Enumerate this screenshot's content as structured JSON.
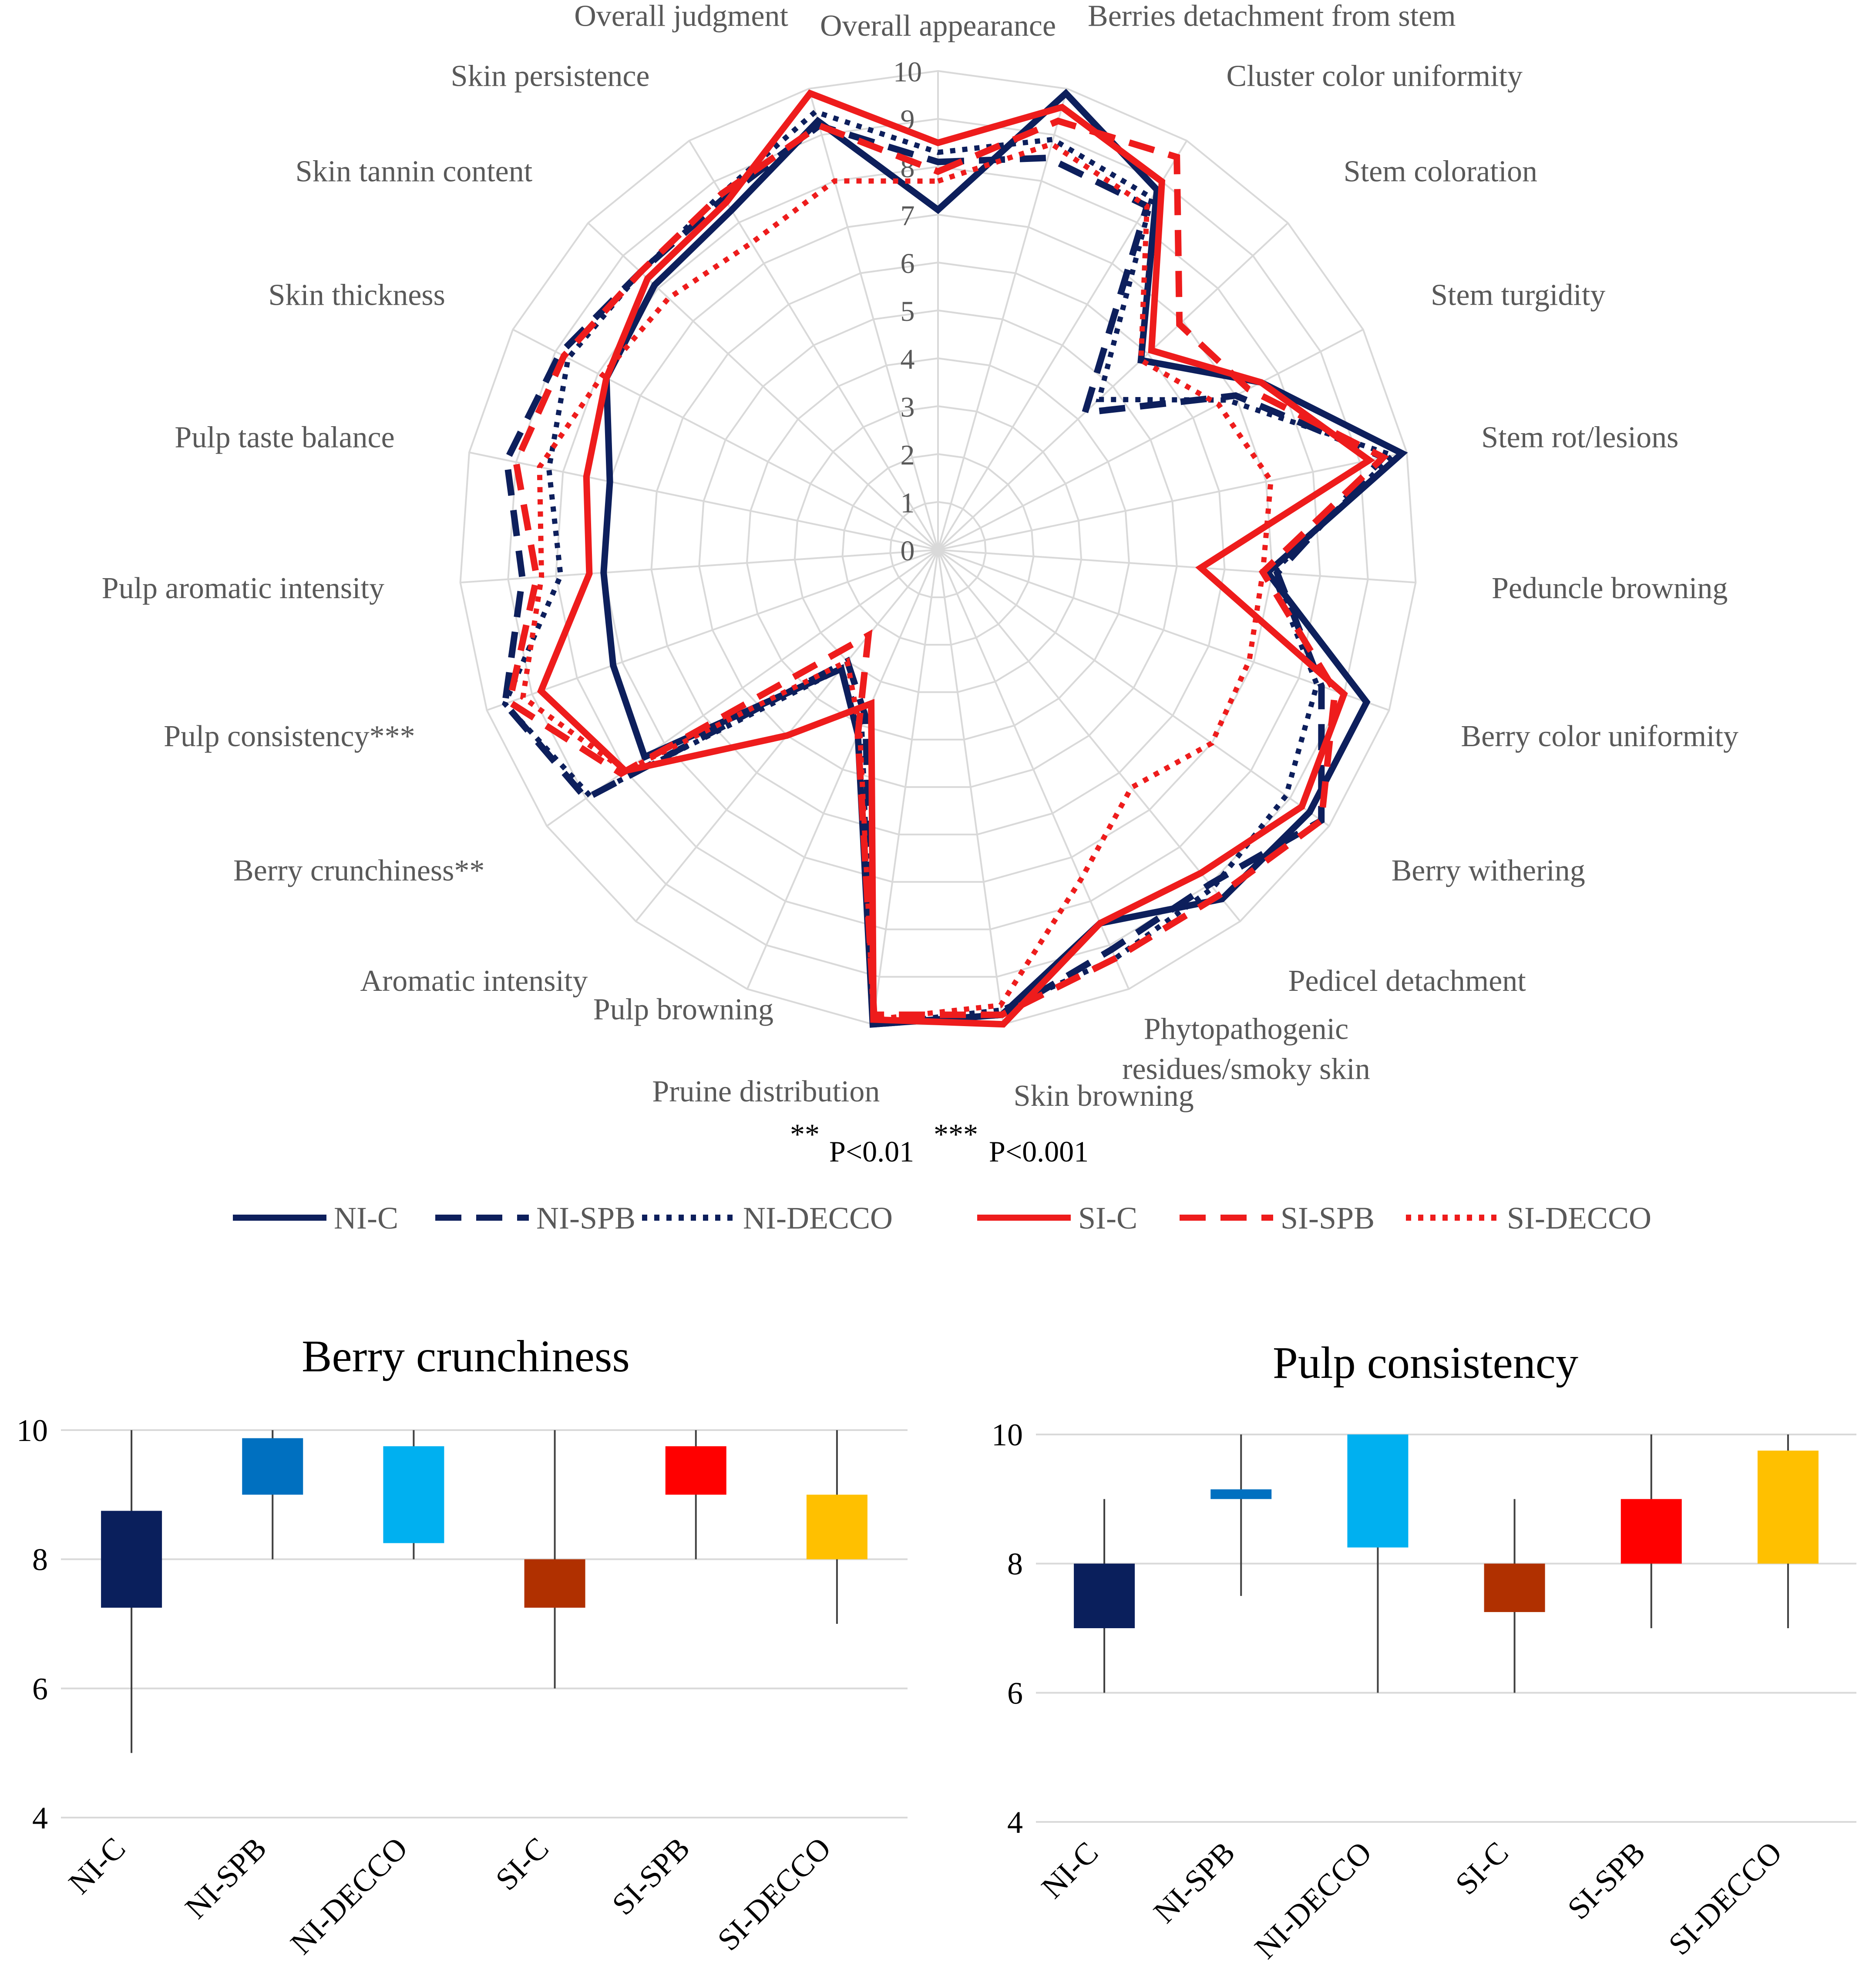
{
  "chart_data": [
    {
      "type": "radar",
      "title": "",
      "axes": [
        "Overall appearance",
        "Berries detachment from stem",
        "Cluster color uniformity",
        "Stem coloration",
        "Stem turgidity",
        "Stem rot/lesions",
        "Peduncle browning",
        "Berry color uniformity",
        "Berry withering",
        "Pedicel detachment",
        "Phytopathogenic residues/smoky skin",
        "Skin browning",
        "Pruine distribution",
        "Pulp browning",
        "Aromatic intensity",
        "Berry crunchiness**",
        "Pulp consistency***",
        "Pulp aromatic intensity",
        "Pulp taste balance",
        "Skin thickness",
        "Skin tannin content",
        "Skin persistence",
        "Overall judgment"
      ],
      "radial_ticks": [
        "0",
        "1",
        "2",
        "3",
        "4",
        "5",
        "6",
        "7",
        "8",
        "9",
        "10"
      ],
      "rlim": [
        0,
        10
      ],
      "series": [
        {
          "name": "NI-C",
          "color": "#0d1f5c",
          "dash": "solid",
          "values": [
            7.1,
            9.9,
            8.8,
            5.8,
            7.6,
            9.9,
            6.9,
            9.5,
            9.5,
            9.4,
            8.5,
            9.8,
            10.0,
            4.2,
            3.2,
            7.5,
            7.2,
            7.0,
            7.0,
            7.8,
            8.1,
            8.3,
            9.3
          ]
        },
        {
          "name": "NI-SPB",
          "color": "#0d1f5c",
          "dash": "dash",
          "values": [
            8.1,
            8.5,
            8.4,
            4.2,
            7.0,
            9.5,
            7.1,
            8.5,
            9.8,
            9.0,
            9.1,
            9.8,
            10.0,
            3.8,
            3.0,
            9.0,
            9.6,
            8.7,
            9.2,
            8.9,
            8.5,
            8.6,
            9.2
          ]
        },
        {
          "name": "NI-DECCO",
          "color": "#0d1f5c",
          "dash": "dot",
          "values": [
            8.3,
            8.9,
            8.6,
            4.6,
            6.8,
            9.7,
            7.0,
            8.4,
            8.9,
            9.1,
            9.3,
            9.7,
            10.0,
            4.0,
            3.2,
            8.9,
            9.6,
            7.9,
            8.3,
            8.7,
            8.5,
            8.7,
            9.5
          ]
        },
        {
          "name": "SI-C",
          "color": "#ee1c1c",
          "dash": "solid",
          "values": [
            8.5,
            9.6,
            9.0,
            6.1,
            7.6,
            9.2,
            5.5,
            9.0,
            9.3,
            8.7,
            8.5,
            10.0,
            9.9,
            3.5,
            5.0,
            8.0,
            8.8,
            7.3,
            7.5,
            7.8,
            8.3,
            8.5,
            9.9
          ]
        },
        {
          "name": "SI-SPB",
          "color": "#ee1c1c",
          "dash": "dash",
          "values": [
            7.9,
            9.3,
            9.6,
            6.9,
            7.3,
            9.5,
            6.8,
            8.8,
            9.8,
            9.3,
            9.3,
            9.8,
            9.8,
            4.2,
            2.3,
            8.1,
            9.5,
            8.4,
            9.0,
            8.8,
            8.5,
            8.7,
            9.2
          ]
        },
        {
          "name": "SI-DECCO",
          "color": "#ee1c1c",
          "dash": "dot",
          "values": [
            7.7,
            8.8,
            8.4,
            5.8,
            6.6,
            7.1,
            6.8,
            6.9,
            7.0,
            6.4,
            7.5,
            9.6,
            9.9,
            4.1,
            3.0,
            8.0,
            9.2,
            8.3,
            8.5,
            7.9,
            7.7,
            7.5,
            8.0
          ]
        }
      ],
      "annotation": {
        "sig_01_stars": "**",
        "sig_01_text": "P<0.01",
        "sig_001_stars": "***",
        "sig_001_text": "P<0.001"
      },
      "legend_position": "bottom"
    },
    {
      "type": "box",
      "title": "Berry crunchiness",
      "categories": [
        "NI-C",
        "NI-SPB",
        "NI-DECCO",
        "SI-C",
        "SI-SPB",
        "SI-DECCO"
      ],
      "colors": [
        "#0a1f5c",
        "#0070c0",
        "#00b0f0",
        "#b03000",
        "#ff0000",
        "#ffc000"
      ],
      "boxes": [
        {
          "min": 5,
          "q1": 7.25,
          "q3": 8.75,
          "max": 10
        },
        {
          "min": 8,
          "q1": 9.0,
          "q3": 9.875,
          "max": 10
        },
        {
          "min": 8,
          "q1": 8.25,
          "q3": 9.75,
          "max": 10
        },
        {
          "min": 6,
          "q1": 7.25,
          "q3": 8.0,
          "max": 10
        },
        {
          "min": 8,
          "q1": 9.0,
          "q3": 9.75,
          "max": 10
        },
        {
          "min": 7,
          "q1": 8.0,
          "q3": 9.0,
          "max": 10
        }
      ],
      "yticks": [
        "4",
        "6",
        "8",
        "10"
      ],
      "ylim": [
        4,
        10
      ],
      "xlabel": "",
      "ylabel": ""
    },
    {
      "type": "box",
      "title": "Pulp consistency",
      "categories": [
        "NI-C",
        "NI-SPB",
        "NI-DECCO",
        "SI-C",
        "SI-SPB",
        "SI-DECCO"
      ],
      "colors": [
        "#0a1f5c",
        "#0070c0",
        "#00b0f0",
        "#b03000",
        "#ff0000",
        "#ffc000"
      ],
      "boxes": [
        {
          "min": 6,
          "q1": 7.0,
          "q3": 8.0,
          "max": 9
        },
        {
          "min": 7.5,
          "q1": 9.0,
          "q3": 9.15,
          "max": 10
        },
        {
          "min": 6,
          "q1": 8.25,
          "q3": 10.0,
          "max": 10
        },
        {
          "min": 6,
          "q1": 7.25,
          "q3": 8.0,
          "max": 9
        },
        {
          "min": 7,
          "q1": 8.0,
          "q3": 9.0,
          "max": 10
        },
        {
          "min": 7,
          "q1": 8.0,
          "q3": 9.75,
          "max": 10
        }
      ],
      "yticks": [
        "4",
        "6",
        "8",
        "10"
      ],
      "ylim": [
        4,
        10
      ],
      "xlabel": "",
      "ylabel": ""
    }
  ]
}
